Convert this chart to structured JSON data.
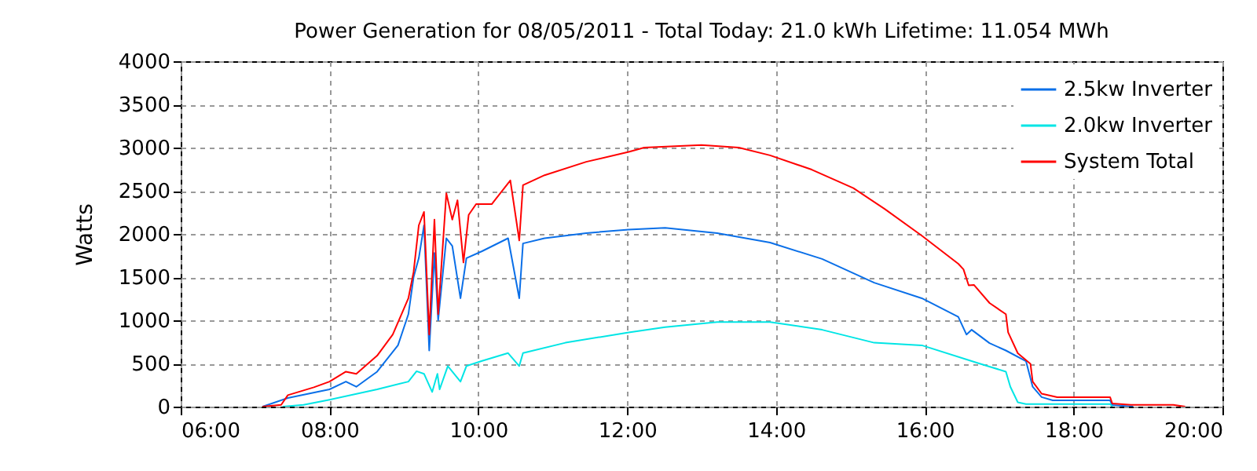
{
  "chart_data": {
    "type": "line",
    "title": "Power Generation for 08/05/2011 - Total Today: 21.0 kWh   Lifetime: 11.054 MWh",
    "ylabel": "Watts",
    "xlim": [
      6,
      20
    ],
    "xticks": [
      {
        "value": 6,
        "label": "06:00"
      },
      {
        "value": 8,
        "label": "08:00"
      },
      {
        "value": 10,
        "label": "10:00"
      },
      {
        "value": 12,
        "label": "12:00"
      },
      {
        "value": 14,
        "label": "14:00"
      },
      {
        "value": 16,
        "label": "16:00"
      },
      {
        "value": 18,
        "label": "18:00"
      },
      {
        "value": 20,
        "label": "20:00"
      }
    ],
    "ylim": [
      0,
      4000
    ],
    "yticks": [
      0,
      500,
      1000,
      1500,
      2000,
      2500,
      3000,
      3500,
      4000
    ],
    "grid": true,
    "legend": "top right",
    "line_style": "solid",
    "series": [
      {
        "name": "2.5kw Inverter",
        "color": "#0a6fe8",
        "x": [
          7.1,
          7.44,
          8.0,
          8.22,
          8.36,
          8.64,
          8.92,
          9.06,
          9.13,
          9.2,
          9.27,
          9.34,
          9.41,
          9.46,
          9.57,
          9.65,
          9.76,
          9.84,
          10.05,
          10.4,
          10.55,
          10.6,
          10.89,
          11.45,
          12.02,
          12.51,
          13.21,
          13.92,
          14.62,
          15.32,
          15.96,
          16.45,
          16.56,
          16.63,
          16.87,
          17.09,
          17.36,
          17.45,
          17.57,
          17.72,
          18.49,
          18.52,
          18.8
        ],
        "values": [
          0,
          100,
          200,
          290,
          230,
          405,
          710,
          1070,
          1500,
          1720,
          2100,
          650,
          1780,
          1000,
          1950,
          1860,
          1255,
          1720,
          1800,
          1950,
          1255,
          1890,
          1950,
          2010,
          2050,
          2070,
          2010,
          1900,
          1710,
          1435,
          1255,
          1040,
          835,
          890,
          735,
          650,
          527,
          230,
          110,
          73,
          73,
          18,
          0
        ]
      },
      {
        "name": "2.0kw Inverter",
        "color": "#00e5e5",
        "x": [
          7.37,
          7.65,
          8.0,
          8.64,
          9.06,
          9.17,
          9.27,
          9.38,
          9.45,
          9.48,
          9.59,
          9.76,
          9.84,
          10.05,
          10.4,
          10.55,
          10.6,
          11.17,
          12.02,
          12.51,
          13.21,
          13.92,
          14.62,
          15.32,
          15.96,
          16.73,
          17.09,
          17.15,
          17.25,
          17.36,
          18.49,
          18.52
        ],
        "values": [
          0,
          20,
          80,
          200,
          290,
          410,
          380,
          170,
          380,
          200,
          470,
          290,
          470,
          530,
          620,
          470,
          620,
          740,
          860,
          920,
          980,
          980,
          890,
          740,
          710,
          500,
          405,
          230,
          50,
          30,
          30,
          0
        ]
      },
      {
        "name": "System Total",
        "color": "#ff0000",
        "x": [
          7.1,
          7.35,
          7.44,
          7.79,
          8.0,
          8.22,
          8.36,
          8.64,
          8.85,
          9.06,
          9.13,
          9.2,
          9.27,
          9.34,
          9.41,
          9.46,
          9.57,
          9.65,
          9.72,
          9.8,
          9.87,
          9.97,
          10.18,
          10.43,
          10.55,
          10.6,
          10.89,
          11.45,
          12.02,
          12.23,
          13.0,
          13.5,
          13.92,
          14.48,
          15.04,
          15.46,
          15.96,
          16.45,
          16.52,
          16.59,
          16.66,
          16.87,
          17.09,
          17.12,
          17.25,
          17.42,
          17.45,
          17.57,
          17.78,
          18.49,
          18.52,
          18.77,
          19.34,
          19.5
        ],
        "values": [
          0,
          20,
          133,
          224,
          290,
          405,
          380,
          590,
          835,
          1255,
          1560,
          2100,
          2255,
          835,
          2165,
          1070,
          2470,
          2165,
          2390,
          1670,
          2220,
          2345,
          2345,
          2620,
          1925,
          2565,
          2680,
          2835,
          2950,
          3000,
          3030,
          3000,
          2910,
          2745,
          2530,
          2290,
          1980,
          1655,
          1590,
          1405,
          1410,
          1200,
          1070,
          860,
          618,
          496,
          290,
          150,
          110,
          110,
          36,
          20,
          20,
          0
        ]
      }
    ]
  }
}
